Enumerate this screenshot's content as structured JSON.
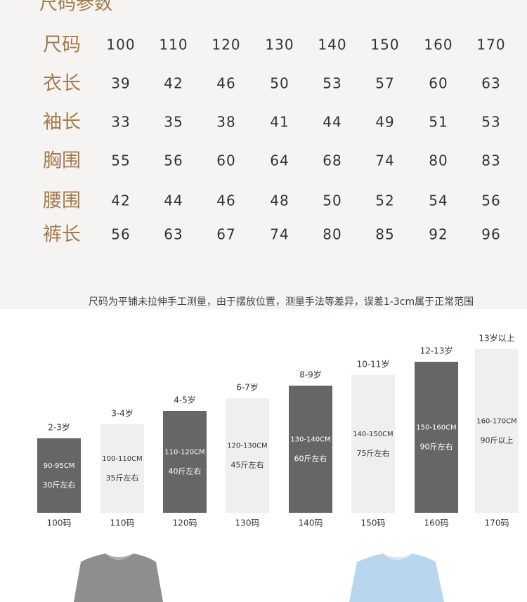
{
  "title": "尺码参数",
  "table": {
    "rows": [
      {
        "label": "尺码",
        "values": [
          "100",
          "110",
          "120",
          "130",
          "140",
          "150",
          "160",
          "170"
        ]
      },
      {
        "label": "衣长",
        "values": [
          "39",
          "42",
          "46",
          "50",
          "53",
          "57",
          "60",
          "63"
        ]
      },
      {
        "label": "袖长",
        "values": [
          "33",
          "35",
          "38",
          "41",
          "44",
          "49",
          "51",
          "53"
        ]
      },
      {
        "label": "胸围",
        "values": [
          "55",
          "56",
          "60",
          "64",
          "68",
          "74",
          "80",
          "83"
        ]
      },
      {
        "label": "腰围",
        "values": [
          "42",
          "44",
          "46",
          "48",
          "50",
          "52",
          "54",
          "56"
        ]
      },
      {
        "label": "裤长",
        "values": [
          "56",
          "63",
          "67",
          "74",
          "80",
          "85",
          "92",
          "96"
        ]
      }
    ]
  },
  "note": "尺码为平铺未拉伸手工测量，由于摆放位置，测量手法等差异，误差1-3cm属于正常范围",
  "sizes": [
    {
      "age": "2-3岁",
      "height": "90-95CM",
      "weight": "30斤左右",
      "size": "100码"
    },
    {
      "age": "3-4岁",
      "height": "100-110CM",
      "weight": "35斤左右",
      "size": "110码"
    },
    {
      "age": "4-5岁",
      "height": "110-120CM",
      "weight": "40斤左右",
      "size": "120码"
    },
    {
      "age": "6-7岁",
      "height": "120-130CM",
      "weight": "45斤左右",
      "size": "130码"
    },
    {
      "age": "8-9岁",
      "height": "130-140CM",
      "weight": "60斤左右",
      "size": "140码"
    },
    {
      "age": "10-11岁",
      "height": "140-150CM",
      "weight": "75斤左右",
      "size": "150码"
    },
    {
      "age": "12-13岁",
      "height": "150-160CM",
      "weight": "90斤左右",
      "size": "160码"
    },
    {
      "age": "13岁以上",
      "height": "160-170CM",
      "weight": "90斤以上",
      "size": "170码"
    }
  ]
}
